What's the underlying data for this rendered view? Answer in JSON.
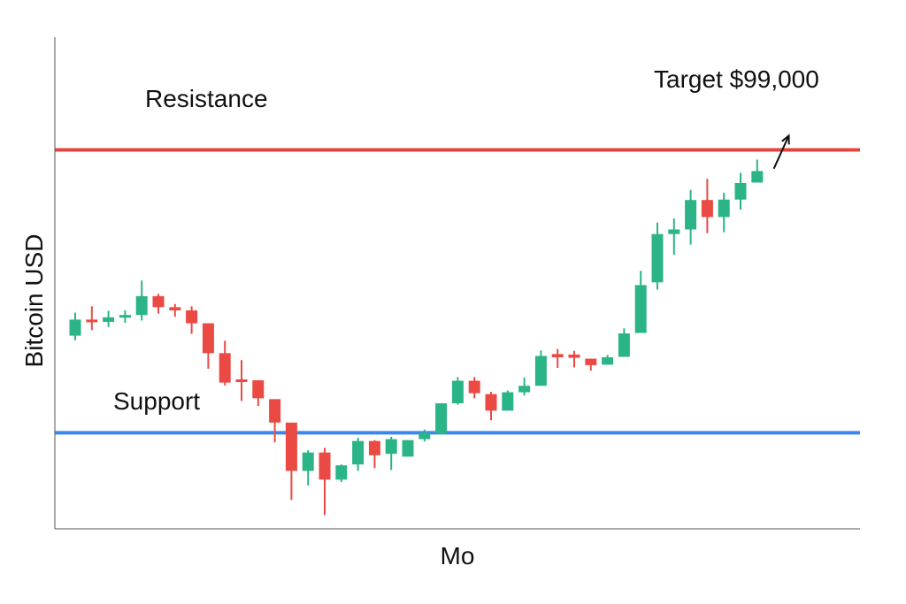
{
  "chart_data": {
    "type": "candlestick",
    "title": "",
    "xlabel": "Mo",
    "ylabel": "Bitcoin USD",
    "ylim": [
      0,
      100
    ],
    "x_count": 43,
    "grid": false,
    "legend": "none",
    "colors": {
      "up": "#2bb488",
      "down": "#ea4a43",
      "resistance": "#e8443f",
      "support": "#3b86f0",
      "axis": "#555555"
    },
    "levels": [
      {
        "label": "Resistance",
        "value": 82.4,
        "color": "#e8443f"
      },
      {
        "label": "Support",
        "value": 20.9,
        "color": "#3b86f0"
      }
    ],
    "annotations": [
      {
        "text": "Target $99,000",
        "x": 42.6,
        "y": 85.5,
        "arrow_from": [
          42.0,
          78.3
        ],
        "arrow_to": [
          42.9,
          85.5
        ]
      }
    ],
    "candles": [
      {
        "x": 0,
        "open": 42.0,
        "high": 47.0,
        "low": 41.0,
        "close": 45.5
      },
      {
        "x": 1,
        "open": 45.5,
        "high": 48.4,
        "low": 43.2,
        "close": 45.0
      },
      {
        "x": 2,
        "open": 45.0,
        "high": 47.4,
        "low": 43.9,
        "close": 46.0
      },
      {
        "x": 3,
        "open": 46.0,
        "high": 47.5,
        "low": 44.8,
        "close": 46.5
      },
      {
        "x": 4,
        "open": 46.5,
        "high": 54.0,
        "low": 45.3,
        "close": 50.6
      },
      {
        "x": 5,
        "open": 50.6,
        "high": 51.1,
        "low": 46.8,
        "close": 48.2
      },
      {
        "x": 6,
        "open": 48.2,
        "high": 48.9,
        "low": 46.1,
        "close": 47.5
      },
      {
        "x": 7,
        "open": 47.5,
        "high": 48.4,
        "low": 42.4,
        "close": 44.7
      },
      {
        "x": 8,
        "open": 44.7,
        "high": 44.7,
        "low": 34.8,
        "close": 38.2
      },
      {
        "x": 9,
        "open": 38.2,
        "high": 40.9,
        "low": 31.2,
        "close": 31.8
      },
      {
        "x": 10,
        "open": 32.5,
        "high": 36.7,
        "low": 27.8,
        "close": 32.0
      },
      {
        "x": 11,
        "open": 32.3,
        "high": 32.3,
        "low": 26.7,
        "close": 28.4
      },
      {
        "x": 12,
        "open": 28.2,
        "high": 28.2,
        "low": 18.8,
        "close": 23.1
      },
      {
        "x": 13,
        "open": 23.1,
        "high": 23.1,
        "low": 6.3,
        "close": 12.6
      },
      {
        "x": 14,
        "open": 12.6,
        "high": 17.1,
        "low": 9.4,
        "close": 16.6
      },
      {
        "x": 15,
        "open": 16.6,
        "high": 17.6,
        "low": 3.0,
        "close": 10.7
      },
      {
        "x": 16,
        "open": 10.7,
        "high": 14.0,
        "low": 10.2,
        "close": 13.8
      },
      {
        "x": 17,
        "open": 14.0,
        "high": 19.8,
        "low": 12.6,
        "close": 19.1
      },
      {
        "x": 18,
        "open": 19.1,
        "high": 19.3,
        "low": 13.2,
        "close": 16.0
      },
      {
        "x": 19,
        "open": 16.3,
        "high": 20.0,
        "low": 12.8,
        "close": 19.5
      },
      {
        "x": 20,
        "open": 15.7,
        "high": 19.3,
        "low": 15.7,
        "close": 19.3
      },
      {
        "x": 21,
        "open": 19.5,
        "high": 21.6,
        "low": 19.0,
        "close": 20.9
      },
      {
        "x": 22,
        "open": 20.6,
        "high": 27.3,
        "low": 20.6,
        "close": 27.3
      },
      {
        "x": 23,
        "open": 27.3,
        "high": 33.0,
        "low": 27.0,
        "close": 32.2
      },
      {
        "x": 24,
        "open": 32.2,
        "high": 33.0,
        "low": 28.4,
        "close": 29.5
      },
      {
        "x": 25,
        "open": 29.3,
        "high": 29.8,
        "low": 23.6,
        "close": 25.7
      },
      {
        "x": 26,
        "open": 25.7,
        "high": 30.1,
        "low": 25.7,
        "close": 29.7
      },
      {
        "x": 27,
        "open": 29.7,
        "high": 32.9,
        "low": 29.0,
        "close": 31.1
      },
      {
        "x": 28,
        "open": 31.1,
        "high": 38.8,
        "low": 31.1,
        "close": 37.6
      },
      {
        "x": 29,
        "open": 38.0,
        "high": 39.1,
        "low": 35.0,
        "close": 37.3
      },
      {
        "x": 30,
        "open": 37.9,
        "high": 38.7,
        "low": 35.1,
        "close": 37.2
      },
      {
        "x": 31,
        "open": 37.0,
        "high": 37.0,
        "low": 34.4,
        "close": 35.6
      },
      {
        "x": 32,
        "open": 35.7,
        "high": 37.8,
        "low": 35.7,
        "close": 37.3
      },
      {
        "x": 33,
        "open": 37.4,
        "high": 43.6,
        "low": 37.4,
        "close": 42.5
      },
      {
        "x": 34,
        "open": 42.6,
        "high": 56.1,
        "low": 42.6,
        "close": 53.0
      },
      {
        "x": 35,
        "open": 53.6,
        "high": 66.6,
        "low": 52.0,
        "close": 64.1
      },
      {
        "x": 36,
        "open": 64.1,
        "high": 67.5,
        "low": 59.6,
        "close": 65.1
      },
      {
        "x": 37,
        "open": 65.1,
        "high": 73.7,
        "low": 61.8,
        "close": 71.5
      },
      {
        "x": 38,
        "open": 71.5,
        "high": 76.1,
        "low": 64.3,
        "close": 67.8
      },
      {
        "x": 39,
        "open": 67.8,
        "high": 73.1,
        "low": 64.5,
        "close": 71.6
      },
      {
        "x": 40,
        "open": 71.6,
        "high": 77.4,
        "low": 69.4,
        "close": 75.2
      },
      {
        "x": 41,
        "open": 75.3,
        "high": 80.3,
        "low": 75.3,
        "close": 77.8
      }
    ]
  }
}
